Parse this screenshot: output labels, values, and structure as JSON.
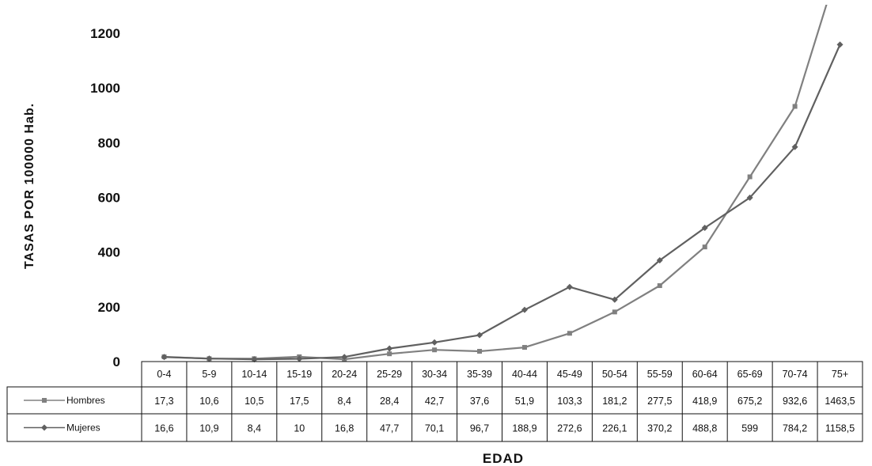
{
  "chart_data": {
    "type": "line",
    "title": "",
    "xlabel": "EDAD",
    "ylabel": "TASAS POR 100000 Hab.",
    "ylim": [
      0,
      1200
    ],
    "yticks": [
      "0",
      "200",
      "400",
      "600",
      "800",
      "1000",
      "1200"
    ],
    "categories": [
      "0-4",
      "5-9",
      "10-14",
      "15-19",
      "20-24",
      "25-29",
      "30-34",
      "35-39",
      "40-44",
      "45-49",
      "50-54",
      "55-59",
      "60-64",
      "65-69",
      "70-74",
      "75+"
    ],
    "series": [
      {
        "name": "Hombres",
        "color": "#808080",
        "marker": "square",
        "values": [
          17.3,
          10.6,
          10.5,
          17.5,
          8.4,
          28.4,
          42.7,
          37.6,
          51.9,
          103.3,
          181.2,
          277.5,
          418.9,
          675.2,
          932.6,
          1463.5
        ],
        "labels": [
          "17,3",
          "10,6",
          "10,5",
          "17,5",
          "8,4",
          "28,4",
          "42,7",
          "37,6",
          "51,9",
          "103,3",
          "181,2",
          "277,5",
          "418,9",
          "675,2",
          "932,6",
          "1463,5"
        ]
      },
      {
        "name": "Mujeres",
        "color": "#606060",
        "marker": "diamond",
        "values": [
          16.6,
          10.9,
          8.4,
          10,
          16.8,
          47.7,
          70.1,
          96.7,
          188.9,
          272.6,
          226.1,
          370.2,
          488.8,
          599,
          784.2,
          1158.5
        ],
        "labels": [
          "16,6",
          "10,9",
          "8,4",
          "10",
          "16,8",
          "47,7",
          "70,1",
          "96,7",
          "188,9",
          "272,6",
          "226,1",
          "370,2",
          "488,8",
          "599",
          "784,2",
          "1158,5"
        ]
      }
    ],
    "legend": "data-table-left",
    "grid": false
  }
}
